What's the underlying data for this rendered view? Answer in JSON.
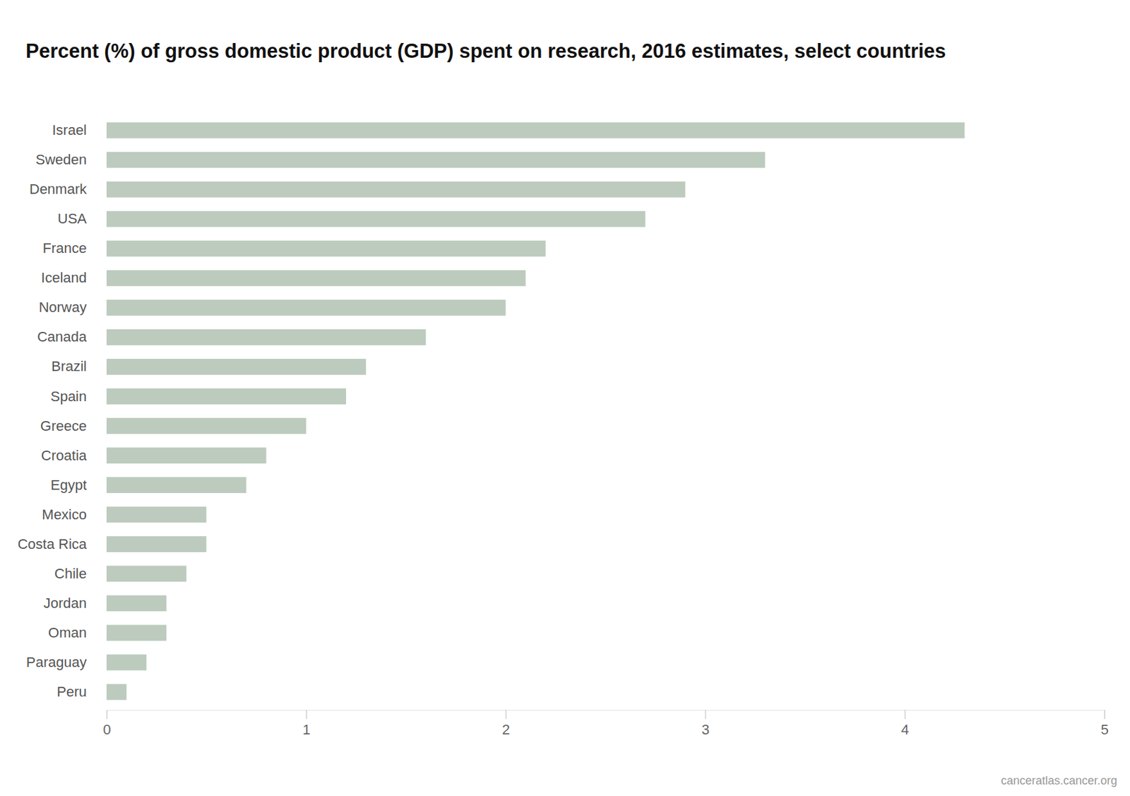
{
  "chart_data": {
    "type": "bar",
    "orientation": "horizontal",
    "title": "Percent (%) of gross domestic product (GDP) spent on research, 2016 estimates, select countries",
    "source": "canceratlas.cancer.org",
    "categories": [
      "Israel",
      "Sweden",
      "Denmark",
      "USA",
      "France",
      "Iceland",
      "Norway",
      "Canada",
      "Brazil",
      "Spain",
      "Greece",
      "Croatia",
      "Egypt",
      "Mexico",
      "Costa Rica",
      "Chile",
      "Jordan",
      "Oman",
      "Paraguay",
      "Peru"
    ],
    "values": [
      4.3,
      3.3,
      2.9,
      2.7,
      2.2,
      2.1,
      2.0,
      1.6,
      1.3,
      1.2,
      1.0,
      0.8,
      0.7,
      0.5,
      0.5,
      0.4,
      0.3,
      0.3,
      0.2,
      0.1
    ],
    "color": "#bccbbe",
    "xlim": [
      0,
      5
    ],
    "xticks": [
      0,
      1,
      2,
      3,
      4,
      5
    ],
    "grid": false
  }
}
